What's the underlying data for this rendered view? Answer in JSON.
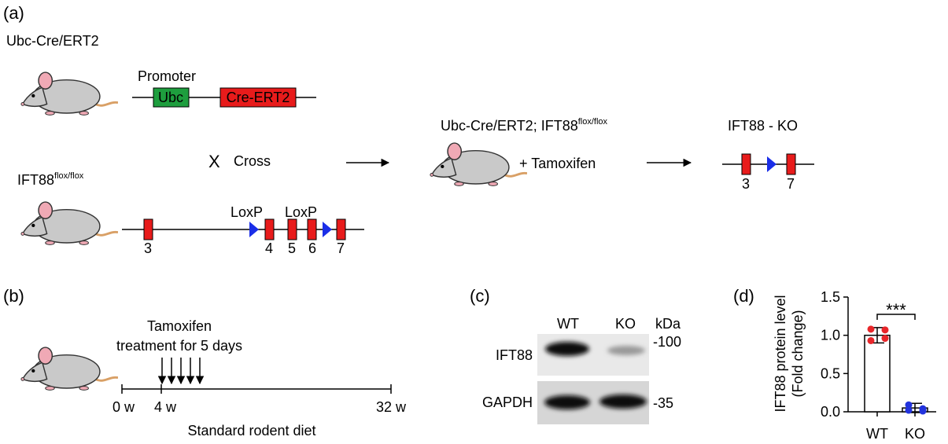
{
  "panel_a": {
    "label": "(a)",
    "cre_line": "Ubc-Cre/ERT2",
    "promoter": "Promoter",
    "ubc": "Ubc",
    "cre_ert2": "Cre-ERT2",
    "cross_x": "X",
    "cross": "Cross",
    "flox_line": {
      "text": "IFT88",
      "sup": "flox/flox"
    },
    "loxp": [
      "LoxP",
      "LoxP"
    ],
    "exons": [
      "3",
      "4",
      "5",
      "6",
      "7"
    ],
    "offspring": {
      "text": "Ubc-Cre/ERT2; IFT88",
      "sup": "flox/flox"
    },
    "tamoxifen": "+ Tamoxifen",
    "ko_title": "IFT88 - KO",
    "ko_exons": [
      "3",
      "7"
    ]
  },
  "panel_b": {
    "label": "(b)",
    "treatment": [
      "Tamoxifen",
      "treatment for 5 days"
    ],
    "timepoints": [
      "0 w",
      "4 w",
      "32 w"
    ],
    "diet": "Standard rodent diet"
  },
  "panel_c": {
    "label": "(c)",
    "lanes": [
      "WT",
      "KO"
    ],
    "unit": "kDa",
    "proteins": [
      "IFT88",
      "GAPDH"
    ],
    "markers": [
      "-100",
      "-35"
    ]
  },
  "chart_data": {
    "type": "bar",
    "label": "(d)",
    "y_label": [
      "IFT88 protein level",
      "(Fold change)"
    ],
    "categories": [
      "WT",
      "KO"
    ],
    "values": [
      1.0,
      0.05
    ],
    "errors": [
      0.1,
      0.06
    ],
    "points": [
      [
        1.08,
        1.07,
        0.96,
        0.93
      ],
      [
        0.02,
        0.01,
        0.04,
        0.09
      ]
    ],
    "point_colors": [
      "#e8262a",
      "#2233dd"
    ],
    "color": "#ffffff",
    "significance": "***",
    "ylim": [
      0,
      1.5
    ],
    "yticks": [
      {
        "value": 0,
        "label": "0.0"
      },
      {
        "value": 0.5,
        "label": "0.5"
      },
      {
        "value": 1,
        "label": "1.0"
      },
      {
        "value": 1.5,
        "label": "1.5"
      }
    ]
  }
}
